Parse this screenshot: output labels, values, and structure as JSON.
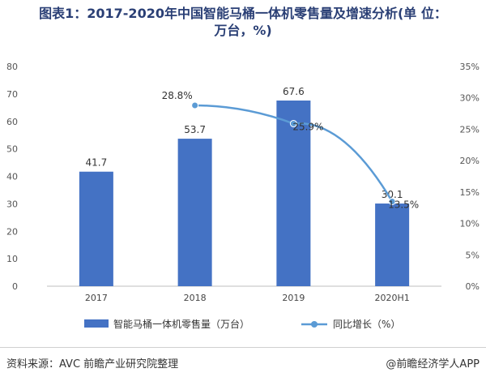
{
  "title_line1": "图表1：2017-2020年中国智能马桶一体机零售量及增速分析(单 位：",
  "title_line2": "万台，%)",
  "source": "资料来源：AVC 前瞻产业研究院整理",
  "brand": "@前瞻经济学人APP",
  "colors": {
    "bar": "#4472c4",
    "line": "#5b9bd5",
    "title": "#2a3f75"
  },
  "chart_data": {
    "type": "bar",
    "categories": [
      "2017",
      "2018",
      "2019",
      "2020H1"
    ],
    "series": [
      {
        "name": "智能马桶一体机零售量（万台）",
        "type": "bar",
        "axis": "left",
        "values": [
          41.7,
          53.7,
          67.6,
          30.1
        ],
        "labels": [
          "41.7",
          "53.7",
          "67.6",
          "30.1"
        ]
      },
      {
        "name": "同比增长（%）",
        "type": "line",
        "axis": "right",
        "points": [
          {
            "category": "2018",
            "value": 28.8
          },
          {
            "category": "2019",
            "value": 25.9
          },
          {
            "category": "2020H1",
            "value": 13.5
          }
        ],
        "labels": [
          "28.8%",
          "25.9%",
          "13.5%"
        ]
      }
    ],
    "y_left": {
      "min": 0,
      "max": 80,
      "ticks": [
        "0",
        "10",
        "20",
        "30",
        "40",
        "50",
        "60",
        "70",
        "80"
      ]
    },
    "y_right": {
      "min": 0,
      "max": 35,
      "ticks": [
        "0%",
        "5%",
        "10%",
        "15%",
        "20%",
        "25%",
        "30%",
        "35%"
      ]
    },
    "grid": false,
    "legend_position": "bottom"
  }
}
